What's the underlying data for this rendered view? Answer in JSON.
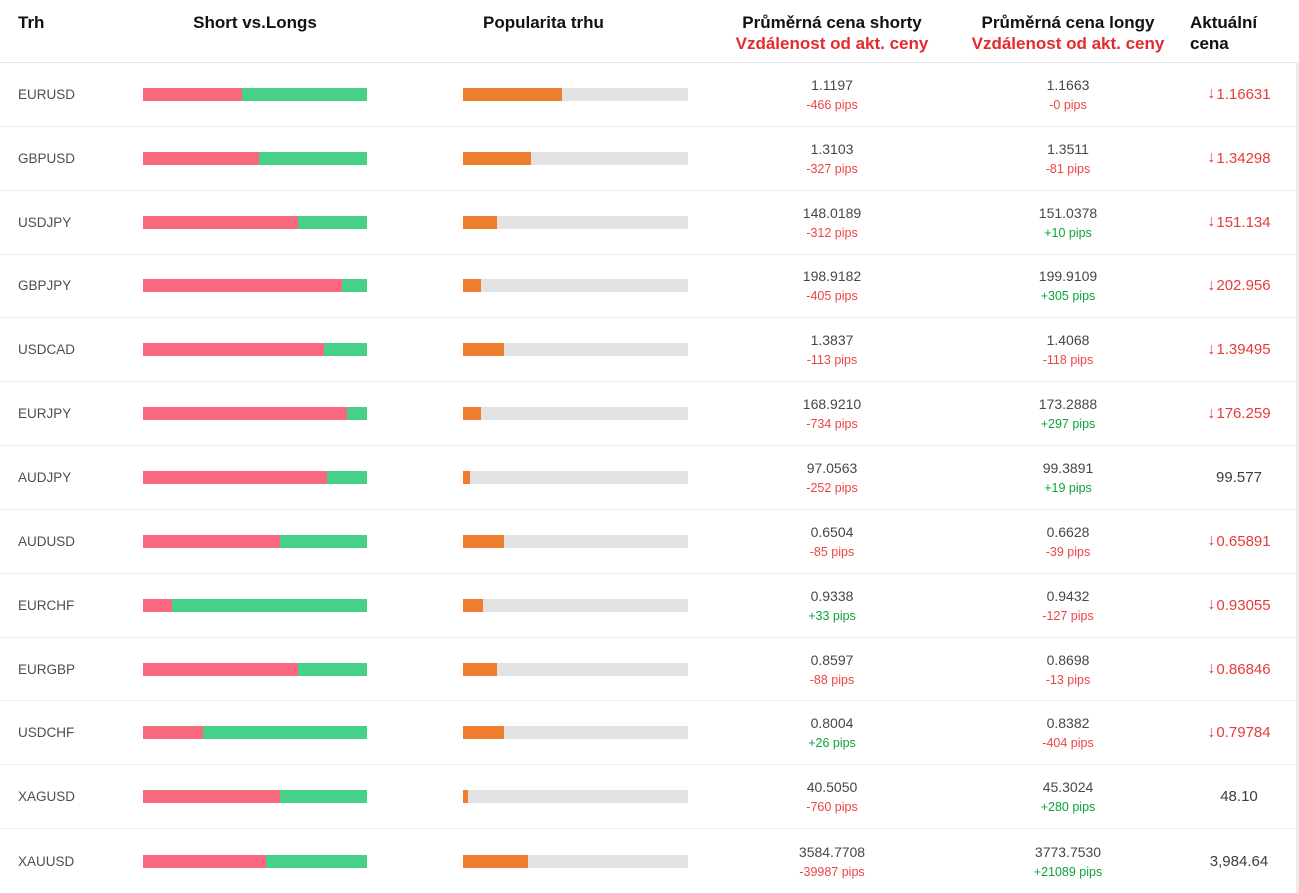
{
  "header": {
    "market": "Trh",
    "short_vs_longs": "Short vs.Longs",
    "popularity": "Popularita trhu",
    "avg_short_title": "Průměrná cena shorty",
    "avg_short_subtitle": "Vzdálenost od akt. ceny",
    "avg_long_title": "Průměrná cena longy",
    "avg_long_subtitle": "Vzdálenost od akt. ceny",
    "current": "Aktuální cena"
  },
  "icons": {
    "down_arrow": "↓"
  },
  "colors": {
    "short_bar": "#f8697d",
    "long_bar": "#47d088",
    "popularity_bar": "#ee7d2f",
    "bar_track": "#e3e3e3",
    "pips_negative": "#ef4444",
    "pips_positive": "#0da33c",
    "price_down": "#e43b3b",
    "header_accent": "#e42b2b"
  },
  "chart_data": {
    "type": "table",
    "title": "Short vs. Longs market sentiment table",
    "columns": [
      "Trh",
      "Short vs.Longs",
      "Popularita trhu",
      "Průměrná cena shorty / Vzdálenost od akt. ceny",
      "Průměrná cena longy / Vzdálenost od akt. ceny",
      "Aktuální cena"
    ],
    "rows": [
      {
        "market": "EURUSD",
        "short_pct": 44,
        "long_pct": 56,
        "popularity_pct": 44,
        "avg_short_price": "1.1197",
        "short_distance_pips": "-466 pips",
        "avg_long_price": "1.1663",
        "long_distance_pips": "-0 pips",
        "current_price": "1.16631",
        "current_down": true
      },
      {
        "market": "GBPUSD",
        "short_pct": 52,
        "long_pct": 48,
        "popularity_pct": 30,
        "avg_short_price": "1.3103",
        "short_distance_pips": "-327 pips",
        "avg_long_price": "1.3511",
        "long_distance_pips": "-81 pips",
        "current_price": "1.34298",
        "current_down": true
      },
      {
        "market": "USDJPY",
        "short_pct": 69,
        "long_pct": 31,
        "popularity_pct": 15,
        "avg_short_price": "148.0189",
        "short_distance_pips": "-312 pips",
        "avg_long_price": "151.0378",
        "long_distance_pips": "+10 pips",
        "current_price": "151.134",
        "current_down": true
      },
      {
        "market": "GBPJPY",
        "short_pct": 89,
        "long_pct": 11,
        "popularity_pct": 8,
        "avg_short_price": "198.9182",
        "short_distance_pips": "-405 pips",
        "avg_long_price": "199.9109",
        "long_distance_pips": "+305 pips",
        "current_price": "202.956",
        "current_down": true
      },
      {
        "market": "USDCAD",
        "short_pct": 81,
        "long_pct": 19,
        "popularity_pct": 18,
        "avg_short_price": "1.3837",
        "short_distance_pips": "-113 pips",
        "avg_long_price": "1.4068",
        "long_distance_pips": "-118 pips",
        "current_price": "1.39495",
        "current_down": true
      },
      {
        "market": "EURJPY",
        "short_pct": 91,
        "long_pct": 9,
        "popularity_pct": 8,
        "avg_short_price": "168.9210",
        "short_distance_pips": "-734 pips",
        "avg_long_price": "173.2888",
        "long_distance_pips": "+297 pips",
        "current_price": "176.259",
        "current_down": true
      },
      {
        "market": "AUDJPY",
        "short_pct": 82,
        "long_pct": 18,
        "popularity_pct": 3,
        "avg_short_price": "97.0563",
        "short_distance_pips": "-252 pips",
        "avg_long_price": "99.3891",
        "long_distance_pips": "+19 pips",
        "current_price": "99.577",
        "current_down": false
      },
      {
        "market": "AUDUSD",
        "short_pct": 61,
        "long_pct": 39,
        "popularity_pct": 18,
        "avg_short_price": "0.6504",
        "short_distance_pips": "-85 pips",
        "avg_long_price": "0.6628",
        "long_distance_pips": "-39 pips",
        "current_price": "0.65891",
        "current_down": true
      },
      {
        "market": "EURCHF",
        "short_pct": 13,
        "long_pct": 87,
        "popularity_pct": 9,
        "avg_short_price": "0.9338",
        "short_distance_pips": "+33 pips",
        "avg_long_price": "0.9432",
        "long_distance_pips": "-127 pips",
        "current_price": "0.93055",
        "current_down": true
      },
      {
        "market": "EURGBP",
        "short_pct": 69,
        "long_pct": 31,
        "popularity_pct": 15,
        "avg_short_price": "0.8597",
        "short_distance_pips": "-88 pips",
        "avg_long_price": "0.8698",
        "long_distance_pips": "-13 pips",
        "current_price": "0.86846",
        "current_down": true
      },
      {
        "market": "USDCHF",
        "short_pct": 27,
        "long_pct": 73,
        "popularity_pct": 18,
        "avg_short_price": "0.8004",
        "short_distance_pips": "+26 pips",
        "avg_long_price": "0.8382",
        "long_distance_pips": "-404 pips",
        "current_price": "0.79784",
        "current_down": true
      },
      {
        "market": "XAGUSD",
        "short_pct": 61,
        "long_pct": 39,
        "popularity_pct": 2,
        "avg_short_price": "40.5050",
        "short_distance_pips": "-760 pips",
        "avg_long_price": "45.3024",
        "long_distance_pips": "+280 pips",
        "current_price": "48.10",
        "current_down": false
      },
      {
        "market": "XAUUSD",
        "short_pct": 55,
        "long_pct": 45,
        "popularity_pct": 29,
        "avg_short_price": "3584.7708",
        "short_distance_pips": "-39987 pips",
        "avg_long_price": "3773.7530",
        "long_distance_pips": "+21089 pips",
        "current_price": "3,984.64",
        "current_down": false
      }
    ]
  }
}
